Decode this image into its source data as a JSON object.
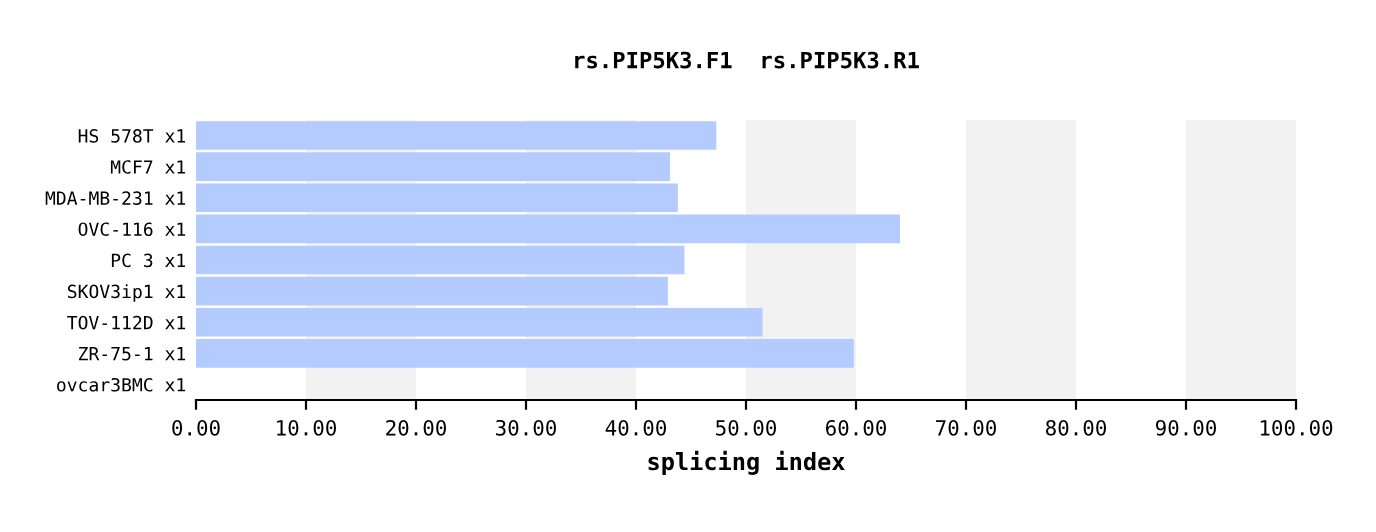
{
  "chart_data": {
    "type": "bar",
    "orientation": "horizontal",
    "title": "rs.PIP5K3.F1  rs.PIP5K3.R1",
    "xlabel": "splicing index",
    "categories": [
      "HS 578T x1",
      "MCF7 x1",
      "MDA-MB-231 x1",
      "OVC-116 x1",
      "PC 3 x1",
      "SKOV3ip1 x1",
      "TOV-112D x1",
      "ZR-75-1 x1",
      "ovcar3BMC x1"
    ],
    "values": [
      47.3,
      43.1,
      43.8,
      64.0,
      44.4,
      42.9,
      51.5,
      59.8,
      null
    ],
    "color": "#b3cbfe",
    "xlim": [
      0,
      100
    ],
    "xticks": [
      {
        "value": 0,
        "label": "0.00"
      },
      {
        "value": 10,
        "label": "10.00"
      },
      {
        "value": 20,
        "label": "20.00"
      },
      {
        "value": 30,
        "label": "30.00"
      },
      {
        "value": 40,
        "label": "40.00"
      },
      {
        "value": 50,
        "label": "50.00"
      },
      {
        "value": 60,
        "label": "60.00"
      },
      {
        "value": 70,
        "label": "70.00"
      },
      {
        "value": 80,
        "label": "80.00"
      },
      {
        "value": 90,
        "label": "90.00"
      },
      {
        "value": 100,
        "label": "100.00"
      }
    ],
    "bands": [
      {
        "axis": "x",
        "from": 10,
        "to": 20,
        "color": "#f2f2f2"
      },
      {
        "axis": "x",
        "from": 30,
        "to": 40,
        "color": "#f2f2f2"
      },
      {
        "axis": "x",
        "from": 50,
        "to": 60,
        "color": "#f2f2f2"
      },
      {
        "axis": "x",
        "from": 70,
        "to": 80,
        "color": "#f2f2f2"
      },
      {
        "axis": "x",
        "from": 90,
        "to": 100,
        "color": "#f2f2f2"
      }
    ],
    "grid": false,
    "legend": false
  }
}
